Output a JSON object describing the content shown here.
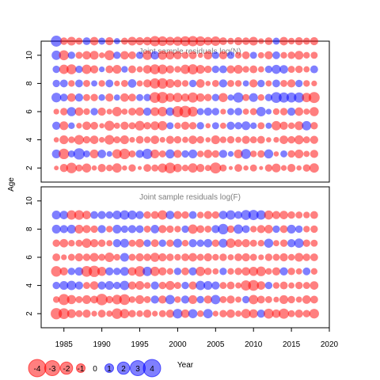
{
  "colors": {
    "positive": "#0000ff",
    "negative": "#ff0000",
    "title": "#7f7f7f",
    "axis": "#000000"
  },
  "chart_data": [
    {
      "type": "scatter",
      "subtype": "bubble-residuals",
      "title": "Joint sample residuals log(N)",
      "ylabel": "Age",
      "xlabel": "Year",
      "x_range": [
        1982,
        2020
      ],
      "y_range": [
        1,
        11
      ],
      "x_ticks": [
        1985,
        1990,
        1995,
        2000,
        2005,
        2010,
        2015,
        2020
      ],
      "y_ticks": [
        2,
        4,
        6,
        8,
        10
      ],
      "years_start": 1984,
      "years_end": 2018,
      "ages_start": 2,
      "ages_end": 10,
      "note": "",
      "residuals": [
        [
          -0.4,
          -1.2,
          -2.0,
          -0.9,
          -1.5,
          -0.5,
          -1.2,
          -0.8,
          -1.6,
          -0.5,
          -1.0,
          -0.3,
          -1.1,
          -0.9,
          -1.5,
          -2.1,
          -1.3,
          -0.8,
          -1.6,
          -1.2,
          -0.7,
          -2.2,
          -0.9,
          -0.3,
          -1.1,
          -0.5,
          -0.9,
          -0.3,
          -1.0,
          -1.4,
          -0.6,
          -1.2,
          -0.5,
          -1.0,
          -1.6
        ],
        [
          1.4,
          -2.0,
          0.9,
          2.3,
          0.9,
          -1.4,
          1.3,
          0.6,
          -1.6,
          -2.0,
          -0.9,
          1.2,
          1.9,
          -1.4,
          -0.9,
          1.5,
          -1.2,
          1.0,
          1.4,
          -0.8,
          -1.3,
          -1.0,
          1.2,
          0.6,
          -1.4,
          1.8,
          -0.8,
          -1.0,
          1.5,
          -0.5,
          0.9,
          -1.0,
          -1.4,
          -0.7,
          -1.2
        ],
        [
          -0.5,
          -1.4,
          -0.8,
          -1.7,
          -1.0,
          -1.3,
          -0.6,
          -1.7,
          -0.9,
          -1.4,
          -0.6,
          -1.1,
          -0.8,
          -1.3,
          -0.6,
          -1.2,
          -1.0,
          -0.7,
          -1.3,
          -1.0,
          -0.5,
          -1.4,
          -0.8,
          -1.0,
          -0.7,
          -1.2,
          -0.9,
          -1.1,
          -0.5,
          -0.6,
          -1.3,
          -1.0,
          -1.5,
          -0.9,
          -1.2
        ],
        [
          1.2,
          -1.4,
          0.8,
          -0.6,
          -1.3,
          -1.1,
          -0.5,
          -1.8,
          -0.7,
          -1.2,
          -0.9,
          -1.7,
          -1.0,
          -1.4,
          -1.6,
          0.9,
          -0.8,
          -1.2,
          -1.0,
          1.0,
          -0.5,
          0.9,
          -0.7,
          1.2,
          1.0,
          1.4,
          0.8,
          -0.9,
          0.7,
          -1.6,
          -1.2,
          -0.8,
          -1.4,
          1.6,
          -1.0
        ],
        [
          -0.6,
          -1.0,
          1.5,
          -1.3,
          -0.8,
          1.0,
          -1.2,
          -0.6,
          -1.6,
          -0.7,
          -1.1,
          -1.3,
          1.2,
          -1.4,
          -1.6,
          1.3,
          -2.2,
          -2.5,
          -1.8,
          0.9,
          1.2,
          1.0,
          -0.6,
          0.9,
          1.1,
          -0.7,
          -0.9,
          1.6,
          0.6,
          -0.8,
          -1.0,
          1.2,
          -1.3,
          -0.7,
          -1.5
        ],
        [
          1.7,
          1.1,
          -1.3,
          1.2,
          -0.9,
          -1.0,
          0.8,
          -1.2,
          0.7,
          -1.3,
          -1.1,
          0.9,
          1.0,
          -2.1,
          -2.3,
          -1.4,
          -1.6,
          -1.2,
          -1.9,
          -1.3,
          -1.0,
          1.0,
          -1.5,
          0.7,
          1.9,
          -0.9,
          1.4,
          -0.8,
          1.0,
          2.1,
          1.9,
          1.8,
          1.9,
          -1.6,
          -2.2
        ],
        [
          1.0,
          1.1,
          -0.8,
          1.1,
          -0.9,
          0.7,
          -0.8,
          1.1,
          -0.6,
          -0.9,
          1.3,
          -0.7,
          -1.2,
          -1.9,
          -2.0,
          -1.4,
          -1.1,
          -0.8,
          1.0,
          -1.3,
          -0.5,
          -0.9,
          1.2,
          -0.9,
          -0.8,
          0.7,
          -1.2,
          1.0,
          -0.7,
          1.1,
          -0.9,
          -1.2,
          1.0,
          -0.8,
          -0.6
        ],
        [
          1.0,
          -1.6,
          -1.8,
          1.0,
          -1.6,
          -1.2,
          0.6,
          -1.1,
          -1.4,
          0.8,
          -1.1,
          -0.7,
          -1.3,
          -1.8,
          -1.7,
          -1.2,
          -0.8,
          -1.6,
          -1.9,
          -1.4,
          -1.0,
          1.0,
          1.1,
          -1.2,
          -1.4,
          -0.8,
          -1.1,
          -0.7,
          1.0,
          1.5,
          1.3,
          -0.9,
          -1.0,
          -0.7,
          1.1
        ],
        [
          1.6,
          -1.8,
          1.0,
          -0.9,
          -1.3,
          -1.4,
          -0.6,
          -1.8,
          1.0,
          -1.3,
          -1.1,
          1.0,
          -1.6,
          1.3,
          -1.5,
          -1.3,
          -1.2,
          -0.9,
          -1.1,
          -0.5,
          -1.3,
          1.0,
          -1.2,
          1.0,
          -0.8,
          -1.1,
          0.9,
          -0.7,
          -1.2,
          1.1,
          -0.8,
          -1.0,
          -1.4,
          -0.8,
          -0.9
        ],
        [
          2.2,
          -1.0,
          -1.4,
          -0.9,
          1.1,
          -1.3,
          0.9,
          -1.2,
          0.7,
          -0.9,
          -1.4,
          -1.2,
          -1.3,
          -1.9,
          -1.7,
          -1.4,
          -1.5,
          -1.8,
          -1.9,
          -1.7,
          -1.3,
          -1.6,
          -1.1,
          -0.8,
          -1.2,
          -1.0,
          -1.4,
          -0.6,
          -1.1,
          0.9,
          -1.3,
          -0.8,
          -1.2,
          -0.9,
          -1.2
        ]
      ]
    },
    {
      "type": "scatter",
      "subtype": "bubble-residuals",
      "title": "Joint sample residuals log(F)",
      "ylabel": "",
      "xlabel": "Year",
      "x_range": [
        1982,
        2020
      ],
      "y_range": [
        1,
        11
      ],
      "x_ticks": [
        1985,
        1990,
        1995,
        2000,
        2005,
        2010,
        2015,
        2020
      ],
      "x_tick_labels": [
        "1985",
        "1990",
        "1995",
        "2000",
        "2005",
        "2010",
        "2015",
        "2020"
      ],
      "y_ticks": [
        2,
        4,
        6,
        8,
        10
      ],
      "years_start": 1984,
      "years_end": 2018,
      "ages_start": 2,
      "ages_end": 9,
      "residuals": [
        [
          -2.3,
          -2.1,
          -1.4,
          -0.9,
          -1.2,
          -0.6,
          -1.1,
          -0.7,
          -2.0,
          -1.6,
          -1.0,
          -0.8,
          -1.2,
          -0.6,
          -0.9,
          -1.2,
          1.7,
          -1.3,
          1.5,
          -0.8,
          1.6,
          -0.6,
          -1.0,
          -1.3,
          -0.7,
          -1.6,
          -1.4,
          1.2,
          -1.8,
          -1.3,
          -1.9,
          -0.9,
          -1.2,
          -1.0,
          -1.7
        ],
        [
          -0.8,
          -2.2,
          -1.5,
          -0.9,
          -1.4,
          -1.1,
          -2.4,
          -1.0,
          -1.7,
          -2.1,
          -0.8,
          -1.4,
          -0.9,
          1.2,
          -1.2,
          1.6,
          -0.8,
          1.2,
          -1.4,
          1.0,
          -1.2,
          1.6,
          -0.9,
          -1.2,
          -0.7,
          1.0,
          -1.6,
          -1.1,
          -0.9,
          -0.6,
          -1.4,
          -1.0,
          -0.7,
          -1.3,
          -1.1
        ],
        [
          1.0,
          1.4,
          1.6,
          1.2,
          -0.9,
          -1.3,
          1.2,
          1.4,
          1.0,
          1.6,
          -1.2,
          -1.4,
          -0.8,
          1.2,
          -1.0,
          -1.5,
          -0.9,
          1.0,
          -1.2,
          1.6,
          1.4,
          1.2,
          -0.9,
          -1.1,
          -0.7,
          -1.9,
          -2.1,
          -1.3,
          1.0,
          -0.8,
          -1.1,
          -0.7,
          -1.0,
          -0.9,
          -1.3
        ],
        [
          -2.0,
          -1.2,
          1.0,
          1.3,
          -2.1,
          -2.3,
          -1.5,
          1.2,
          1.0,
          1.4,
          -1.3,
          -2.0,
          1.6,
          -1.6,
          -1.2,
          -0.8,
          1.0,
          -1.1,
          1.2,
          -1.6,
          -1.0,
          -0.7,
          1.0,
          -0.8,
          -1.0,
          -1.3,
          -1.5,
          -1.7,
          -0.8,
          -1.2,
          1.2,
          -1.0,
          -0.7,
          1.1,
          -0.8
        ],
        [
          -1.1,
          -0.6,
          -0.9,
          -1.2,
          -1.0,
          -1.4,
          -0.9,
          -1.6,
          -0.8,
          1.4,
          -0.9,
          -1.2,
          -1.0,
          -1.5,
          -1.2,
          -1.0,
          -0.8,
          -1.1,
          -1.3,
          -0.9,
          -1.2,
          -0.8,
          -1.0,
          -0.7,
          -1.1,
          -1.2,
          -0.9,
          -0.6,
          -1.0,
          -0.9,
          -1.2,
          -0.8,
          -1.4,
          -1.0,
          -1.1
        ],
        [
          -1.0,
          -1.3,
          -0.8,
          -0.9,
          -1.6,
          -1.2,
          -1.0,
          -0.7,
          1.2,
          1.4,
          -0.9,
          -1.3,
          1.0,
          -1.1,
          1.0,
          -1.0,
          1.4,
          -0.8,
          1.2,
          1.0,
          1.3,
          -1.0,
          1.4,
          -1.6,
          -1.1,
          -1.2,
          -0.9,
          -0.8,
          1.5,
          -0.7,
          -1.0,
          1.2,
          1.6,
          -1.0,
          -0.9
        ],
        [
          1.4,
          1.2,
          1.4,
          -1.4,
          -1.2,
          -1.0,
          1.2,
          -0.8,
          1.4,
          1.0,
          1.2,
          1.1,
          -0.9,
          1.3,
          -1.2,
          -1.0,
          -0.8,
          1.0,
          -1.6,
          -1.1,
          -0.9,
          1.2,
          2.0,
          -1.0,
          1.6,
          1.1,
          -0.8,
          -1.2,
          -1.3,
          1.0,
          -1.1,
          1.4,
          1.0,
          -0.8,
          -1.0
        ],
        [
          1.4,
          1.3,
          -1.6,
          -1.7,
          -1.3,
          1.1,
          1.2,
          1.0,
          1.4,
          1.6,
          1.5,
          1.2,
          -1.0,
          -1.1,
          -1.6,
          1.3,
          -1.2,
          -1.0,
          1.1,
          -0.8,
          -1.2,
          -1.0,
          1.3,
          1.6,
          1.1,
          1.8,
          1.9,
          1.6,
          -1.5,
          -1.2,
          -1.3,
          -1.0,
          -0.9,
          -0.8,
          -1.1
        ]
      ]
    }
  ],
  "legend": {
    "labels": [
      "-4",
      "-3",
      "-2",
      "-1",
      "0",
      "1",
      "2",
      "3",
      "4"
    ],
    "values": [
      -4,
      -3,
      -2,
      -1,
      0,
      1,
      2,
      3,
      4
    ]
  }
}
